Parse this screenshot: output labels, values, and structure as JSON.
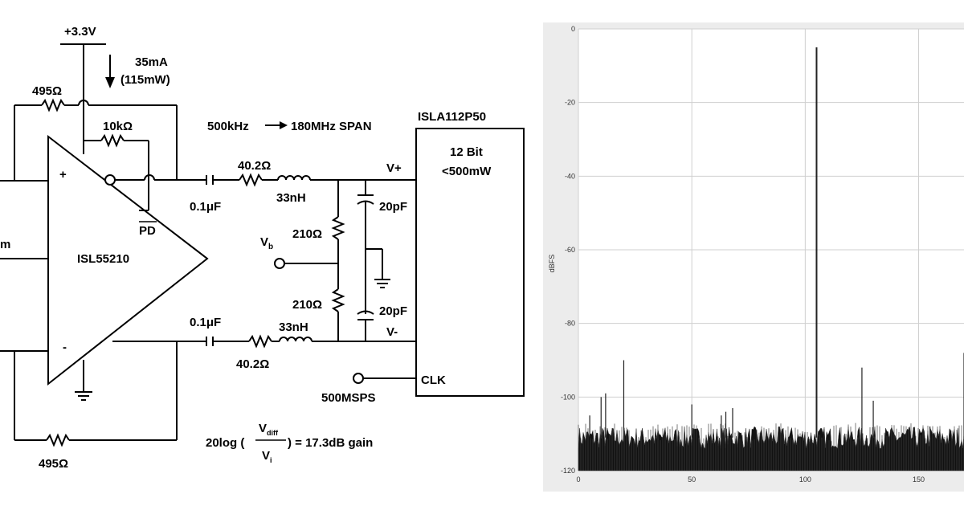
{
  "schematic": {
    "supply_label": "+3.3V",
    "current_label": "35mA",
    "power_label": "(115mW)",
    "r_feedback_top": "495Ω",
    "r_feedback_bottom": "495Ω",
    "r_pd": "10kΩ",
    "span_label": "500kHz",
    "span_label_2": "180MHz SPAN",
    "amp_name": "ISL55210",
    "pd_label": "PD",
    "input_fragment": "m",
    "cap_top": "0.1μF",
    "cap_bottom": "0.1μF",
    "r_series_top": "40.2Ω",
    "r_series_bottom": "40.2Ω",
    "ind_top": "33nH",
    "ind_bottom": "33nH",
    "r_bias_top": "210Ω",
    "r_bias_bottom": "210Ω",
    "cap_adc_top": "20pF",
    "cap_adc_bottom": "20pF",
    "vb_main": "V",
    "vb_sub": "b",
    "adc_name": "ISLA112P50",
    "adc_bits": "12 Bit",
    "adc_power": "<500mW",
    "vplus": "V+",
    "vminus": "V-",
    "vdiff_main": "V",
    "vdiff_sub": "diff",
    "clk_label": "CLK",
    "clk_rate": "500MSPS",
    "gain_prefix": "20log (",
    "gain_num_main": "V",
    "gain_num_sub": "diff",
    "gain_den_main": "V",
    "gain_den_sub": "i",
    "gain_suffix": ") = 17.3dB gain"
  },
  "chart_data": {
    "type": "line",
    "title": "",
    "xlabel": "",
    "ylabel": "dBFS",
    "xlim": [
      0,
      170
    ],
    "ylim": [
      -120,
      0
    ],
    "grid": true,
    "x_ticks": [
      "0",
      "50",
      "100",
      "150"
    ],
    "y_ticks": [
      "0",
      "-20",
      "-40",
      "-60",
      "-80",
      "-100",
      "-120"
    ],
    "noise_floor": -111,
    "spurs": [
      {
        "x": 105,
        "y": -5
      },
      {
        "x": 20,
        "y": -90
      },
      {
        "x": 12,
        "y": -99
      },
      {
        "x": 10,
        "y": -100
      },
      {
        "x": 5,
        "y": -105
      },
      {
        "x": 50,
        "y": -102
      },
      {
        "x": 65,
        "y": -104
      },
      {
        "x": 63,
        "y": -105
      },
      {
        "x": 68,
        "y": -103
      },
      {
        "x": 125,
        "y": -92
      },
      {
        "x": 130,
        "y": -101
      },
      {
        "x": 155,
        "y": -108
      },
      {
        "x": 170,
        "y": -88
      }
    ]
  }
}
